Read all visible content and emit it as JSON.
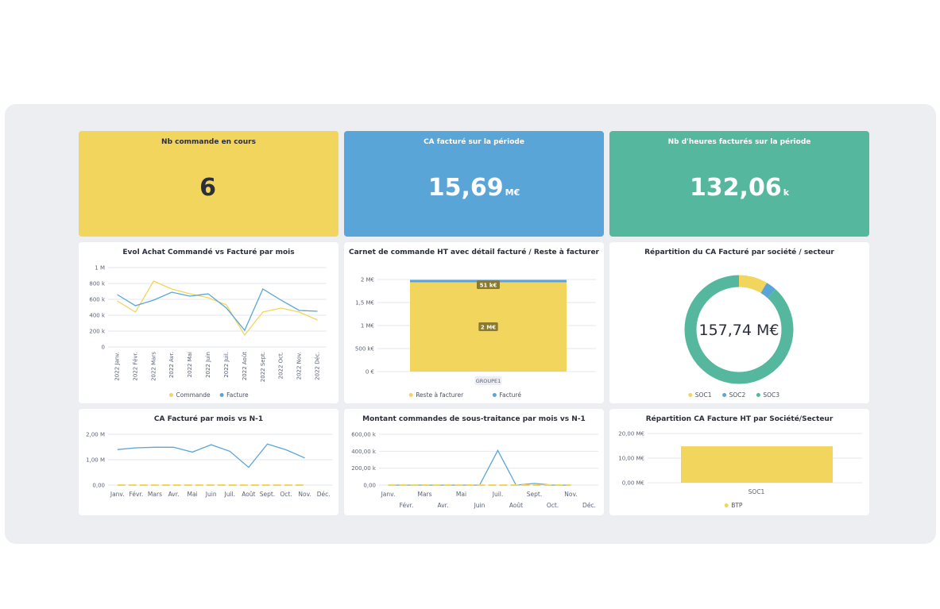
{
  "kpis": [
    {
      "title": "Nb commande en cours",
      "value": "6",
      "unit": "",
      "color": "#f2d55c",
      "text_color": "#2b2f3a"
    },
    {
      "title": "CA facturé sur la période",
      "value": "15,69",
      "unit": "M€",
      "color": "#5aa5d8",
      "text_color": "#ffffff"
    },
    {
      "title": "Nb d'heures facturés sur la période",
      "value": "132,06",
      "unit": "k",
      "color": "#55b89e",
      "text_color": "#ffffff"
    }
  ],
  "colors": {
    "yellow": "#f2d55c",
    "blue": "#5aa5d8",
    "green": "#55b89e"
  },
  "chart_data": [
    {
      "type": "line",
      "title": "Evol Achat Commandé vs Facturé par mois",
      "categories": [
        "2022 Janv.",
        "2022 Févr.",
        "2022 Mars",
        "2022 Avr.",
        "2022 Mai",
        "2022 Juin",
        "2022 Juil.",
        "2022 Août",
        "2022 Sept.",
        "2022 Oct.",
        "2022 Nov.",
        "2022 Déc."
      ],
      "y_ticks": [
        "0",
        "200 k",
        "400 k",
        "600 k",
        "800 k",
        "1 M"
      ],
      "ylim": [
        0,
        1000000
      ],
      "series": [
        {
          "name": "Commande",
          "color": "#f2d55c",
          "values": [
            580000,
            440000,
            830000,
            730000,
            670000,
            620000,
            530000,
            150000,
            440000,
            490000,
            440000,
            340000
          ]
        },
        {
          "name": "Facture",
          "color": "#5aa5d8",
          "values": [
            660000,
            520000,
            590000,
            690000,
            640000,
            670000,
            490000,
            210000,
            730000,
            590000,
            460000,
            450000
          ]
        }
      ],
      "legend": "bottom"
    },
    {
      "type": "bar",
      "title": "Carnet de commande HT avec détail facturé / Reste à facturer",
      "categories": [
        "GROUPE1"
      ],
      "y_ticks": [
        "0 €",
        "500 k€",
        "1 M€",
        "1,5 M€",
        "2 M€"
      ],
      "ylim": [
        0,
        2000000
      ],
      "stacked": true,
      "series": [
        {
          "name": "Reste à facturer",
          "color": "#f2d55c",
          "values": [
            1940000
          ],
          "label": "2 M€"
        },
        {
          "name": "Facturé",
          "color": "#5aa5d8",
          "values": [
            51000
          ],
          "label": "51 k€"
        }
      ],
      "legend": "bottom"
    },
    {
      "type": "pie",
      "title": "Répartition du CA Facturé par société / secteur",
      "center_label": "157,74 M€",
      "series": [
        {
          "name": "SOC1",
          "color": "#f2d55c",
          "value": 13500000
        },
        {
          "name": "SOC2",
          "color": "#5aa5d8",
          "value": 5000000
        },
        {
          "name": "SOC3",
          "color": "#55b89e",
          "value": 139240000
        }
      ],
      "legend": "bottom"
    },
    {
      "type": "line",
      "title": "CA Facturé par mois vs N-1",
      "categories": [
        "Janv.",
        "Févr.",
        "Mars",
        "Avr.",
        "Mai",
        "Juin",
        "Juil.",
        "Août",
        "Sept.",
        "Oct.",
        "Nov.",
        "Déc."
      ],
      "y_ticks": [
        "0,00",
        "1,00 M",
        "2,00 M"
      ],
      "ylim": [
        0,
        2000000
      ],
      "series": [
        {
          "color": "#5aa5d8",
          "values": [
            1400000,
            1470000,
            1490000,
            1490000,
            1300000,
            1590000,
            1330000,
            700000,
            1620000,
            1390000,
            1070000,
            null
          ]
        },
        {
          "color": "#f2d55c",
          "dashed": true,
          "values": [
            0,
            0,
            0,
            0,
            0,
            0,
            0,
            0,
            0,
            0,
            0,
            null
          ]
        }
      ]
    },
    {
      "type": "line",
      "title": "Montant commandes de sous-traitance par mois vs N-1",
      "categories": [
        "Janv.",
        "Févr.",
        "Mars",
        "Avr.",
        "Mai",
        "Juin",
        "Juil.",
        "Août",
        "Sept.",
        "Oct.",
        "Nov.",
        "Déc."
      ],
      "y_ticks": [
        "0,00",
        "200,00 k",
        "400,00 k",
        "600,00 k"
      ],
      "ylim": [
        0,
        600000
      ],
      "series": [
        {
          "color": "#5aa5d8",
          "values": [
            0,
            0,
            0,
            0,
            0,
            0,
            410000,
            0,
            20000,
            0,
            0,
            null
          ]
        },
        {
          "color": "#f2d55c",
          "dashed": true,
          "values": [
            0,
            0,
            0,
            0,
            0,
            0,
            0,
            0,
            0,
            0,
            0,
            null
          ]
        }
      ]
    },
    {
      "type": "bar",
      "title": "Répartition CA Facture HT par Société/Secteur",
      "categories": [
        "SOC1"
      ],
      "y_ticks": [
        "0,00 M€",
        "10,00 M€",
        "20,00 M€"
      ],
      "ylim": [
        0,
        20000000
      ],
      "series": [
        {
          "name": "BTP",
          "color": "#f2d55c",
          "values": [
            14800000
          ]
        }
      ],
      "legend": "bottom"
    }
  ]
}
